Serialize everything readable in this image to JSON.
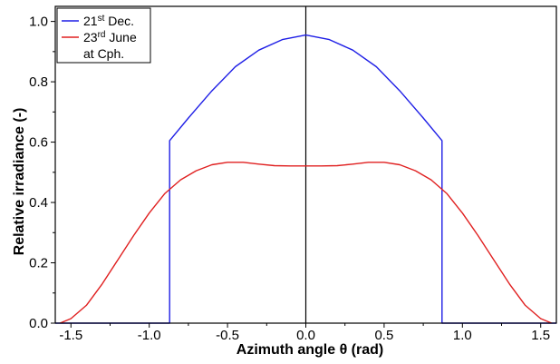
{
  "chart_data": {
    "type": "line",
    "xlabel": "Azimuth angle θ  (rad)",
    "ylabel": "Relative irradiance (-)",
    "xlim": [
      -1.6,
      1.6
    ],
    "ylim": [
      0.0,
      1.05
    ],
    "x_ticks": [
      "-1.5",
      "-1.0",
      "-0.5",
      "0.0",
      "0.5",
      "1.0",
      "1.5"
    ],
    "x_tick_values": [
      -1.5,
      -1.0,
      -0.5,
      0.0,
      0.5,
      1.0,
      1.5
    ],
    "y_ticks": [
      "0.0",
      "0.2",
      "0.4",
      "0.6",
      "0.8",
      "1.0"
    ],
    "y_tick_values": [
      0.0,
      0.2,
      0.4,
      0.6,
      0.8,
      1.0
    ],
    "grid": false,
    "legend_position": "top-left",
    "legend_entries": [
      {
        "base": "21",
        "sup": "st",
        "rest": " Dec.",
        "color": "#1f1fe6"
      },
      {
        "base": "23",
        "sup": "rd",
        "rest": " June",
        "color": "#e02020"
      }
    ],
    "legend_extra": "at Cph.",
    "series": [
      {
        "color": "#1f1fe6",
        "x": [
          -1.6,
          -0.87,
          -0.87,
          -0.87,
          -0.75,
          -0.6,
          -0.45,
          -0.3,
          -0.15,
          0.0,
          0.15,
          0.3,
          0.45,
          0.6,
          0.75,
          0.87,
          0.87,
          0.87,
          1.6
        ],
        "y": [
          0.0,
          0.0,
          0.3,
          0.605,
          0.68,
          0.77,
          0.85,
          0.905,
          0.94,
          0.955,
          0.94,
          0.905,
          0.85,
          0.77,
          0.68,
          0.605,
          0.3,
          0.0,
          0.0
        ]
      },
      {
        "color": "#e02020",
        "x": [
          -1.57,
          -1.5,
          -1.4,
          -1.3,
          -1.2,
          -1.1,
          -1.0,
          -0.9,
          -0.8,
          -0.7,
          -0.6,
          -0.5,
          -0.4,
          -0.3,
          -0.2,
          -0.1,
          0.0,
          0.1,
          0.2,
          0.3,
          0.4,
          0.5,
          0.6,
          0.7,
          0.8,
          0.9,
          1.0,
          1.1,
          1.2,
          1.3,
          1.4,
          1.5,
          1.57
        ],
        "y": [
          0.0,
          0.015,
          0.06,
          0.13,
          0.21,
          0.29,
          0.365,
          0.43,
          0.475,
          0.505,
          0.525,
          0.533,
          0.533,
          0.527,
          0.522,
          0.521,
          0.521,
          0.521,
          0.522,
          0.527,
          0.533,
          0.533,
          0.525,
          0.505,
          0.475,
          0.43,
          0.365,
          0.29,
          0.21,
          0.13,
          0.06,
          0.015,
          0.0
        ]
      }
    ]
  }
}
